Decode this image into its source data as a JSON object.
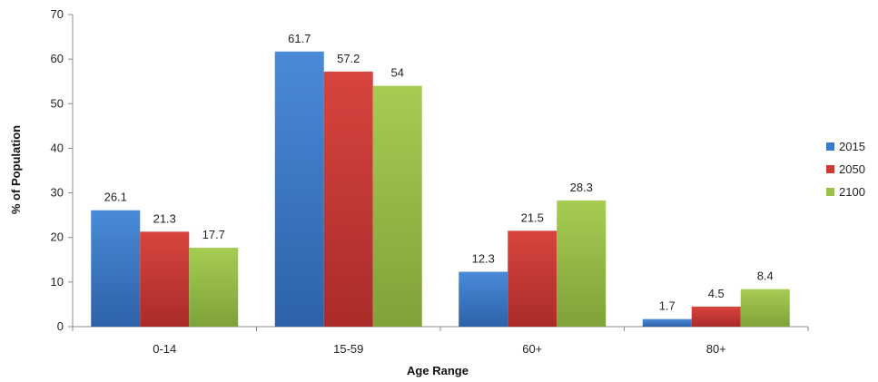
{
  "chart_data": {
    "type": "bar",
    "xlabel": "Age Range",
    "ylabel": "% of Population",
    "ylim": [
      0,
      70
    ],
    "yticks": [
      0,
      10,
      20,
      30,
      40,
      50,
      60,
      70
    ],
    "categories": [
      "0-14",
      "15-59",
      "60+",
      "80+"
    ],
    "series": [
      {
        "name": "2015",
        "color": "#3d7ac9",
        "values": [
          26.1,
          61.7,
          12.3,
          1.7
        ]
      },
      {
        "name": "2050",
        "color": "#cc3a36",
        "values": [
          21.3,
          57.2,
          21.5,
          4.5
        ]
      },
      {
        "name": "2100",
        "color": "#9bc14a",
        "values": [
          17.7,
          54,
          28.3,
          8.4
        ]
      }
    ],
    "data_labels": true,
    "grid": false,
    "legend_position": "right"
  }
}
